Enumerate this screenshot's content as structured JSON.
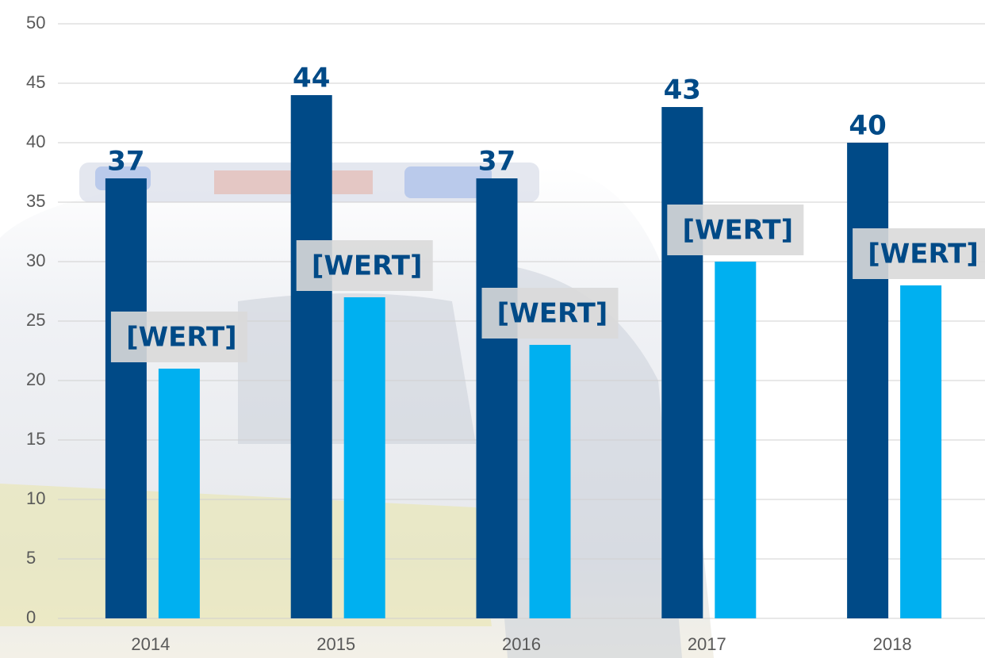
{
  "chart_data": {
    "type": "bar",
    "categories": [
      "2014",
      "2015",
      "2016",
      "2017",
      "2018"
    ],
    "series": [
      {
        "color": "#004a87",
        "values": [
          37,
          44,
          37,
          43,
          40
        ]
      },
      {
        "color": "#00b0f0",
        "values": [
          21,
          27,
          23,
          30,
          28
        ],
        "value_labels": [
          "[WERT]",
          "[WERT]",
          "[WERT]",
          "[WERT]",
          "[WERT]"
        ]
      }
    ],
    "ylim": [
      0,
      50
    ],
    "yticks": [
      0,
      5,
      10,
      15,
      20,
      25,
      30,
      35,
      40,
      45,
      50
    ],
    "grid": true
  }
}
